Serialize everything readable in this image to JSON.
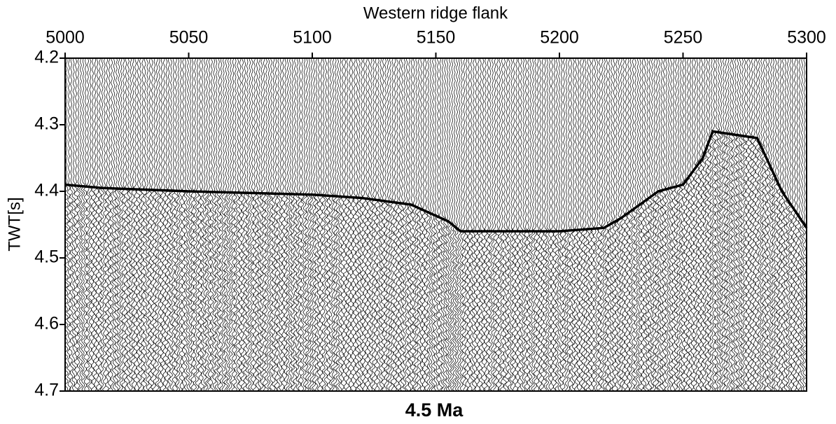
{
  "chart_data": {
    "type": "seismic",
    "title": "Western ridge flank",
    "ylabel": "TWT[s]",
    "caption": "4.5 Ma",
    "xlim": [
      5000,
      5300
    ],
    "xticks": [
      5000,
      5050,
      5100,
      5150,
      5200,
      5250,
      5300
    ],
    "ylim": [
      4.2,
      4.7
    ],
    "yticks": [
      4.2,
      4.3,
      4.4,
      4.5,
      4.6,
      4.7
    ],
    "invert_y": true,
    "series": [
      {
        "color": "#000000",
        "x": [
          5000,
          5015,
          5050,
          5100,
          5120,
          5140,
          5155,
          5160,
          5200,
          5218,
          5225,
          5240,
          5250,
          5258,
          5262,
          5280,
          5290,
          5300
        ],
        "values": [
          4.39,
          4.395,
          4.4,
          4.405,
          4.41,
          4.42,
          4.445,
          4.46,
          4.46,
          4.455,
          4.44,
          4.4,
          4.39,
          4.35,
          4.31,
          4.32,
          4.4,
          4.455
        ]
      }
    ]
  }
}
